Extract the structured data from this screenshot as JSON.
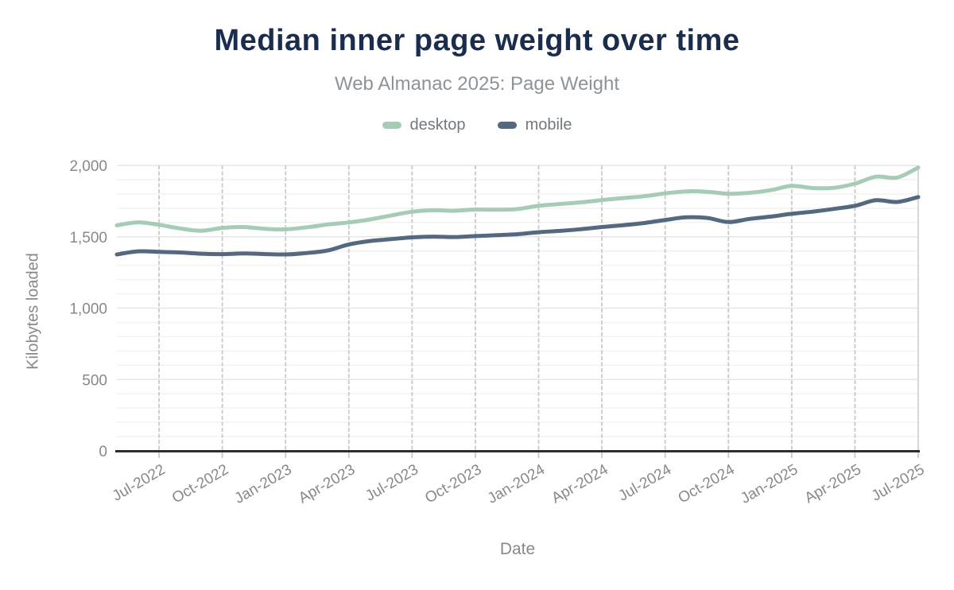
{
  "header": {
    "title": "Median inner page weight over time",
    "subtitle": "Web Almanac 2025: Page Weight"
  },
  "colors": {
    "title": "#1b2d4f",
    "subtitle": "#8d9399",
    "axis_text": "#85898d",
    "desktop_line": "#a6ccb5",
    "mobile_line": "#54687f",
    "grid_minor": "#f2f2f2",
    "grid_major": "#e7e7e7",
    "grid_vertical": "#c9c9c9",
    "axis_line": "#2d2d2d"
  },
  "chart_data": {
    "type": "line",
    "title": "Median inner page weight over time",
    "subtitle": "Web Almanac 2025: Page Weight",
    "xlabel": "Date",
    "ylabel": "Kilobytes loaded",
    "ylim": [
      0,
      2000
    ],
    "y_major_step": 500,
    "y_minor_step": 100,
    "y_tick_labels": [
      "0",
      "500",
      "1,000",
      "1,500",
      "2,000"
    ],
    "grid": "light horizontal minor gridlines every 100, dashed vertical gridlines at quarterly ticks",
    "legend_position": "top",
    "x": [
      "May-2022",
      "Jun-2022",
      "Jul-2022",
      "Aug-2022",
      "Sep-2022",
      "Oct-2022",
      "Nov-2022",
      "Dec-2022",
      "Jan-2023",
      "Feb-2023",
      "Mar-2023",
      "Apr-2023",
      "May-2023",
      "Jun-2023",
      "Jul-2023",
      "Aug-2023",
      "Sep-2023",
      "Oct-2023",
      "Nov-2023",
      "Dec-2023",
      "Jan-2024",
      "Feb-2024",
      "Mar-2024",
      "Apr-2024",
      "May-2024",
      "Jun-2024",
      "Jul-2024",
      "Aug-2024",
      "Sep-2024",
      "Oct-2024",
      "Nov-2024",
      "Dec-2024",
      "Jan-2025",
      "Feb-2025",
      "Mar-2025",
      "Apr-2025",
      "May-2025",
      "Jun-2025",
      "Jul-2025"
    ],
    "x_tick_labels": [
      "Jul-2022",
      "Oct-2022",
      "Jan-2023",
      "Apr-2023",
      "Jul-2023",
      "Oct-2023",
      "Jan-2024",
      "Apr-2024",
      "Jul-2024",
      "Oct-2024",
      "Jan-2025",
      "Apr-2025",
      "Jul-2025"
    ],
    "x_tick_indices": [
      2,
      5,
      8,
      11,
      14,
      17,
      20,
      23,
      26,
      29,
      32,
      35,
      38
    ],
    "series": [
      {
        "name": "desktop",
        "color": "#a6ccb5",
        "values": [
          1580,
          1601,
          1584,
          1558,
          1542,
          1562,
          1568,
          1556,
          1552,
          1566,
          1586,
          1600,
          1621,
          1649,
          1675,
          1686,
          1682,
          1691,
          1689,
          1694,
          1717,
          1729,
          1741,
          1757,
          1771,
          1784,
          1804,
          1818,
          1815,
          1801,
          1808,
          1826,
          1856,
          1841,
          1843,
          1872,
          1921,
          1915,
          1985
        ]
      },
      {
        "name": "mobile",
        "color": "#54687f",
        "values": [
          1376,
          1398,
          1394,
          1390,
          1381,
          1378,
          1383,
          1379,
          1376,
          1386,
          1404,
          1446,
          1470,
          1483,
          1496,
          1501,
          1498,
          1505,
          1511,
          1518,
          1532,
          1541,
          1553,
          1568,
          1581,
          1596,
          1618,
          1636,
          1632,
          1603,
          1625,
          1641,
          1661,
          1676,
          1695,
          1717,
          1756,
          1744,
          1778
        ]
      }
    ]
  }
}
